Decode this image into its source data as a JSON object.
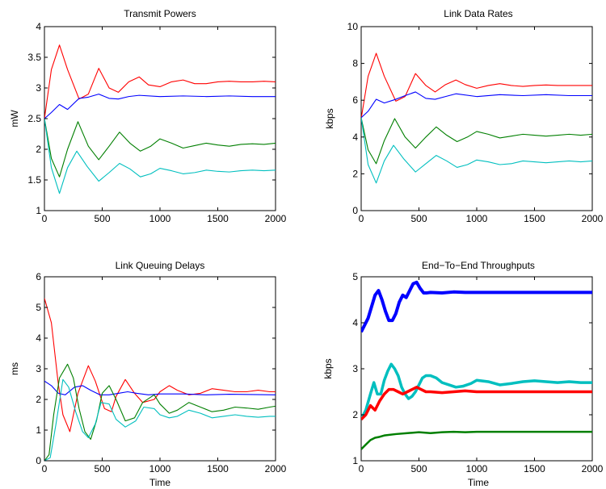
{
  "colors": {
    "red": "#ff0000",
    "blue": "#0000ff",
    "green": "#007f00",
    "cyan": "#00bfbf"
  },
  "chart_data": [
    {
      "type": "line",
      "title": "Transmit Powers",
      "xlabel": "",
      "ylabel": "mW",
      "xlim": [
        0,
        2000
      ],
      "ylim": [
        1,
        4
      ],
      "xticks": [
        0,
        500,
        1000,
        1500,
        2000
      ],
      "yticks": [
        1,
        1.5,
        2,
        2.5,
        3,
        3.5,
        4
      ],
      "series": [
        {
          "color": "red",
          "x": [
            0,
            60,
            130,
            200,
            300,
            380,
            470,
            560,
            640,
            730,
            820,
            900,
            1000,
            1100,
            1200,
            1300,
            1400,
            1500,
            1600,
            1700,
            1800,
            1900,
            2000
          ],
          "y": [
            2.5,
            3.3,
            3.7,
            3.3,
            2.82,
            2.9,
            3.32,
            3.0,
            2.93,
            3.1,
            3.18,
            3.05,
            3.02,
            3.1,
            3.13,
            3.07,
            3.07,
            3.1,
            3.11,
            3.1,
            3.1,
            3.11,
            3.1
          ]
        },
        {
          "color": "blue",
          "x": [
            0,
            60,
            130,
            200,
            300,
            380,
            470,
            560,
            640,
            730,
            820,
            1000,
            1200,
            1400,
            1600,
            1800,
            2000
          ],
          "y": [
            2.5,
            2.6,
            2.73,
            2.65,
            2.83,
            2.85,
            2.9,
            2.83,
            2.82,
            2.86,
            2.88,
            2.86,
            2.87,
            2.86,
            2.87,
            2.86,
            2.86
          ]
        },
        {
          "color": "green",
          "x": [
            0,
            60,
            130,
            200,
            290,
            380,
            470,
            560,
            650,
            740,
            830,
            920,
            1000,
            1100,
            1200,
            1300,
            1400,
            1500,
            1600,
            1700,
            1800,
            1900,
            2000
          ],
          "y": [
            2.5,
            1.85,
            1.55,
            2.0,
            2.45,
            2.05,
            1.83,
            2.05,
            2.28,
            2.1,
            1.97,
            2.05,
            2.17,
            2.1,
            2.02,
            2.06,
            2.1,
            2.07,
            2.05,
            2.08,
            2.09,
            2.08,
            2.1
          ]
        },
        {
          "color": "cyan",
          "x": [
            0,
            60,
            130,
            200,
            280,
            370,
            470,
            560,
            650,
            740,
            830,
            920,
            1000,
            1100,
            1200,
            1300,
            1400,
            1500,
            1600,
            1700,
            1800,
            1900,
            2000
          ],
          "y": [
            2.5,
            1.7,
            1.28,
            1.7,
            1.97,
            1.72,
            1.48,
            1.62,
            1.77,
            1.68,
            1.55,
            1.6,
            1.69,
            1.65,
            1.6,
            1.62,
            1.66,
            1.64,
            1.63,
            1.65,
            1.66,
            1.65,
            1.66
          ]
        }
      ]
    },
    {
      "type": "line",
      "title": "Link Data Rates",
      "xlabel": "",
      "ylabel": "kbps",
      "xlim": [
        0,
        2000
      ],
      "ylim": [
        0,
        10
      ],
      "xticks": [
        0,
        500,
        1000,
        1500,
        2000
      ],
      "yticks": [
        0,
        2,
        4,
        6,
        8,
        10
      ],
      "series": [
        {
          "color": "red",
          "x": [
            0,
            60,
            130,
            200,
            300,
            380,
            470,
            560,
            640,
            730,
            820,
            900,
            1000,
            1100,
            1200,
            1300,
            1400,
            1500,
            1600,
            1700,
            1800,
            1900,
            2000
          ],
          "y": [
            5.0,
            7.3,
            8.55,
            7.3,
            5.95,
            6.2,
            7.45,
            6.8,
            6.45,
            6.85,
            7.1,
            6.85,
            6.65,
            6.8,
            6.9,
            6.8,
            6.75,
            6.8,
            6.83,
            6.8,
            6.8,
            6.8,
            6.8
          ]
        },
        {
          "color": "blue",
          "x": [
            0,
            60,
            130,
            200,
            300,
            380,
            470,
            560,
            640,
            730,
            820,
            1000,
            1200,
            1400,
            1600,
            1800,
            2000
          ],
          "y": [
            5.05,
            5.4,
            6.05,
            5.85,
            6.05,
            6.25,
            6.45,
            6.1,
            6.05,
            6.2,
            6.35,
            6.2,
            6.3,
            6.25,
            6.3,
            6.25,
            6.25
          ]
        },
        {
          "color": "green",
          "x": [
            0,
            60,
            130,
            200,
            290,
            380,
            470,
            560,
            650,
            740,
            830,
            920,
            1000,
            1100,
            1200,
            1300,
            1400,
            1500,
            1600,
            1700,
            1800,
            1900,
            2000
          ],
          "y": [
            5.05,
            3.3,
            2.55,
            3.8,
            5.0,
            4.0,
            3.4,
            4.0,
            4.55,
            4.1,
            3.75,
            4.0,
            4.3,
            4.15,
            3.95,
            4.05,
            4.15,
            4.1,
            4.05,
            4.1,
            4.15,
            4.1,
            4.15
          ]
        },
        {
          "color": "cyan",
          "x": [
            0,
            60,
            130,
            200,
            280,
            370,
            470,
            560,
            650,
            740,
            830,
            920,
            1000,
            1100,
            1200,
            1300,
            1400,
            1500,
            1600,
            1700,
            1800,
            1900,
            2000
          ],
          "y": [
            5.05,
            2.5,
            1.5,
            2.7,
            3.55,
            2.8,
            2.1,
            2.55,
            3.0,
            2.7,
            2.35,
            2.5,
            2.75,
            2.65,
            2.5,
            2.55,
            2.7,
            2.65,
            2.6,
            2.65,
            2.7,
            2.65,
            2.7
          ]
        }
      ]
    },
    {
      "type": "line",
      "title": "Link Queuing Delays",
      "xlabel": "Time",
      "ylabel": "ms",
      "xlim": [
        0,
        2000
      ],
      "ylim": [
        0,
        6
      ],
      "xticks": [
        0,
        500,
        1000,
        1500,
        2000
      ],
      "yticks": [
        0,
        1,
        2,
        3,
        4,
        5,
        6
      ],
      "series": [
        {
          "color": "red",
          "x": [
            0,
            60,
            120,
            160,
            220,
            290,
            380,
            440,
            520,
            580,
            620,
            700,
            780,
            850,
            950,
            1000,
            1080,
            1150,
            1250,
            1350,
            1450,
            1550,
            1650,
            1750,
            1850,
            1950,
            2000
          ],
          "y": [
            5.3,
            4.5,
            2.5,
            1.5,
            0.95,
            2.2,
            3.1,
            2.6,
            1.7,
            1.6,
            2.1,
            2.65,
            2.2,
            1.9,
            2.0,
            2.25,
            2.45,
            2.3,
            2.15,
            2.2,
            2.35,
            2.3,
            2.25,
            2.25,
            2.3,
            2.25,
            2.25
          ]
        },
        {
          "color": "blue",
          "x": [
            0,
            60,
            120,
            180,
            260,
            330,
            400,
            480,
            560,
            640,
            720,
            800,
            900,
            1000,
            1200,
            1400,
            1600,
            1800,
            2000
          ],
          "y": [
            2.6,
            2.45,
            2.2,
            2.15,
            2.4,
            2.45,
            2.3,
            2.15,
            2.15,
            2.2,
            2.25,
            2.2,
            2.15,
            2.18,
            2.18,
            2.15,
            2.17,
            2.16,
            2.15
          ]
        },
        {
          "color": "green",
          "x": [
            0,
            40,
            80,
            130,
            200,
            250,
            300,
            350,
            400,
            450,
            500,
            560,
            620,
            700,
            780,
            850,
            950,
            1000,
            1080,
            1150,
            1250,
            1350,
            1450,
            1550,
            1650,
            1750,
            1850,
            1950,
            2000
          ],
          "y": [
            0,
            0.2,
            1.5,
            2.7,
            3.15,
            2.7,
            1.7,
            0.95,
            0.7,
            1.3,
            2.2,
            2.45,
            2.0,
            1.3,
            1.4,
            1.9,
            2.15,
            1.85,
            1.55,
            1.65,
            1.9,
            1.75,
            1.6,
            1.65,
            1.75,
            1.72,
            1.68,
            1.75,
            1.78
          ]
        },
        {
          "color": "cyan",
          "x": [
            0,
            50,
            100,
            160,
            210,
            270,
            330,
            380,
            440,
            490,
            560,
            620,
            700,
            790,
            860,
            950,
            1000,
            1080,
            1150,
            1250,
            1350,
            1450,
            1550,
            1650,
            1750,
            1850,
            1950,
            2000
          ],
          "y": [
            0,
            0.1,
            1.2,
            2.65,
            2.4,
            1.6,
            0.95,
            0.75,
            1.2,
            1.9,
            1.85,
            1.35,
            1.1,
            1.3,
            1.75,
            1.7,
            1.5,
            1.4,
            1.45,
            1.65,
            1.55,
            1.4,
            1.45,
            1.5,
            1.45,
            1.42,
            1.45,
            1.45
          ]
        }
      ]
    },
    {
      "type": "line",
      "title": "End−To−End Throughputs",
      "xlabel": "Time",
      "ylabel": "kbps",
      "xlim": [
        0,
        2000
      ],
      "ylim": [
        1,
        5
      ],
      "xticks": [
        0,
        500,
        1000,
        1500,
        2000
      ],
      "yticks": [
        1,
        2,
        3,
        4,
        5
      ],
      "series": [
        {
          "color": "blue",
          "width": 4,
          "x": [
            0,
            30,
            60,
            90,
            120,
            150,
            180,
            210,
            240,
            270,
            300,
            330,
            360,
            390,
            420,
            450,
            480,
            510,
            540,
            570,
            600,
            700,
            800,
            900,
            1000,
            1200,
            1400,
            1600,
            1800,
            2000
          ],
          "y": [
            3.8,
            3.95,
            4.1,
            4.35,
            4.6,
            4.7,
            4.5,
            4.25,
            4.05,
            4.05,
            4.2,
            4.45,
            4.6,
            4.55,
            4.7,
            4.85,
            4.88,
            4.75,
            4.65,
            4.65,
            4.66,
            4.65,
            4.67,
            4.66,
            4.66,
            4.66,
            4.66,
            4.66,
            4.66,
            4.66
          ]
        },
        {
          "color": "cyan",
          "width": 3.5,
          "x": [
            0,
            40,
            80,
            110,
            140,
            170,
            200,
            230,
            260,
            290,
            320,
            350,
            380,
            410,
            440,
            470,
            500,
            530,
            560,
            600,
            650,
            700,
            760,
            820,
            880,
            950,
            1000,
            1100,
            1200,
            1300,
            1400,
            1500,
            1600,
            1700,
            1800,
            1900,
            2000
          ],
          "y": [
            1.9,
            2.1,
            2.45,
            2.7,
            2.45,
            2.45,
            2.75,
            2.95,
            3.1,
            3.0,
            2.85,
            2.6,
            2.45,
            2.35,
            2.4,
            2.5,
            2.65,
            2.8,
            2.85,
            2.85,
            2.8,
            2.7,
            2.65,
            2.6,
            2.62,
            2.68,
            2.75,
            2.72,
            2.65,
            2.68,
            2.72,
            2.74,
            2.72,
            2.7,
            2.72,
            2.7,
            2.7
          ]
        },
        {
          "color": "red",
          "width": 3.5,
          "x": [
            0,
            40,
            80,
            120,
            160,
            200,
            240,
            280,
            320,
            360,
            400,
            440,
            480,
            520,
            560,
            600,
            700,
            800,
            900,
            1000,
            1200,
            1400,
            1600,
            1800,
            2000
          ],
          "y": [
            1.9,
            2.0,
            2.2,
            2.1,
            2.3,
            2.45,
            2.55,
            2.55,
            2.5,
            2.45,
            2.5,
            2.55,
            2.6,
            2.55,
            2.5,
            2.5,
            2.48,
            2.5,
            2.52,
            2.5,
            2.5,
            2.5,
            2.5,
            2.5,
            2.5
          ]
        },
        {
          "color": "green",
          "width": 2.5,
          "x": [
            0,
            40,
            80,
            120,
            160,
            200,
            300,
            400,
            500,
            600,
            700,
            800,
            900,
            1000,
            1200,
            1400,
            1600,
            1800,
            2000
          ],
          "y": [
            1.25,
            1.35,
            1.45,
            1.5,
            1.52,
            1.55,
            1.58,
            1.6,
            1.62,
            1.6,
            1.62,
            1.63,
            1.62,
            1.63,
            1.63,
            1.63,
            1.63,
            1.63,
            1.63
          ]
        }
      ]
    }
  ]
}
